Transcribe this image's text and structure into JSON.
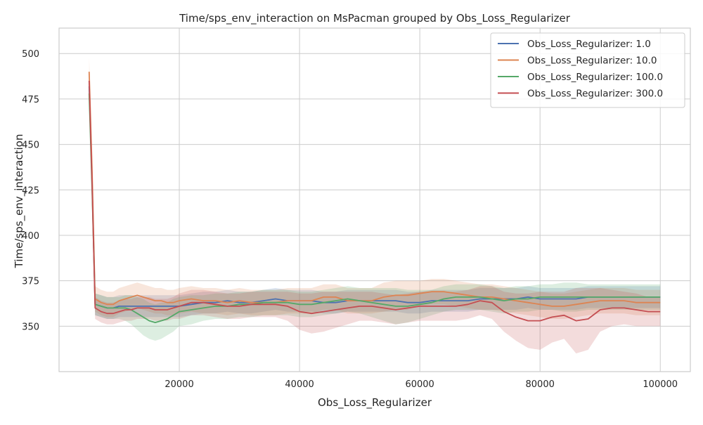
{
  "chart_data": {
    "type": "line",
    "title": "Time/sps_env_interaction on MsPacman grouped by Obs_Loss_Regularizer",
    "xlabel": "Obs_Loss_Regularizer",
    "ylabel": "Time/sps_env_interaction",
    "xlim": [
      0,
      105000
    ],
    "ylim": [
      325,
      514
    ],
    "xticks": [
      20000,
      40000,
      60000,
      80000,
      100000
    ],
    "xtick_labels": [
      "20000",
      "40000",
      "60000",
      "80000",
      "100000"
    ],
    "yticks": [
      350,
      375,
      400,
      425,
      450,
      475,
      500
    ],
    "ytick_labels": [
      "350",
      "375",
      "400",
      "425",
      "450",
      "475",
      "500"
    ],
    "grid": true,
    "legend_position": "top-right",
    "colors": {
      "grid": "#cccccc",
      "axes_edge": "#cccccc"
    },
    "x": [
      5000,
      5500,
      6000,
      7000,
      8000,
      9000,
      10000,
      11000,
      12000,
      13000,
      14000,
      15000,
      16000,
      17000,
      18000,
      19000,
      20000,
      22000,
      24000,
      26000,
      28000,
      30000,
      32000,
      34000,
      36000,
      38000,
      40000,
      42000,
      44000,
      46000,
      48000,
      50000,
      52000,
      54000,
      56000,
      58000,
      60000,
      62000,
      64000,
      66000,
      68000,
      70000,
      72000,
      74000,
      76000,
      78000,
      80000,
      82000,
      84000,
      86000,
      88000,
      90000,
      92000,
      94000,
      96000,
      98000,
      100000
    ],
    "series": [
      {
        "name": "Obs_Loss_Regularizer: 1.0",
        "color": "#4c72b0",
        "values": [
          482,
          430,
          362,
          361,
          360,
          360,
          361,
          361,
          361,
          361,
          361,
          361,
          361,
          361,
          361,
          361,
          361,
          362,
          363,
          363,
          364,
          363,
          363,
          364,
          365,
          364,
          364,
          364,
          363,
          363,
          364,
          364,
          364,
          364,
          364,
          363,
          363,
          364,
          364,
          364,
          364,
          365,
          365,
          365,
          365,
          366,
          365,
          365,
          365,
          365,
          366,
          366,
          366,
          366,
          366,
          366,
          366
        ],
        "band": [
          5,
          10,
          6,
          6,
          6,
          6,
          6,
          6,
          6,
          6,
          6,
          6,
          6,
          6,
          6,
          6,
          6,
          6,
          6,
          6,
          6,
          6,
          6,
          6,
          6,
          6,
          6,
          6,
          6,
          6,
          6,
          6,
          6,
          6,
          6,
          6,
          6,
          6,
          6,
          6,
          6,
          6,
          6,
          6,
          6,
          6,
          6,
          6,
          6,
          6,
          6,
          6,
          6,
          6,
          6,
          6,
          6
        ]
      },
      {
        "name": "Obs_Loss_Regularizer: 10.0",
        "color": "#dd8452",
        "values": [
          490,
          435,
          365,
          363,
          362,
          362,
          364,
          365,
          366,
          367,
          366,
          365,
          364,
          364,
          363,
          363,
          364,
          365,
          364,
          364,
          363,
          364,
          363,
          363,
          363,
          364,
          364,
          364,
          366,
          366,
          364,
          364,
          364,
          366,
          367,
          367,
          368,
          369,
          369,
          368,
          367,
          366,
          366,
          365,
          364,
          363,
          362,
          361,
          361,
          362,
          363,
          364,
          364,
          364,
          363,
          363,
          363
        ],
        "band": [
          8,
          10,
          7,
          7,
          7,
          7,
          7,
          7,
          7,
          7,
          7,
          7,
          7,
          7,
          7,
          7,
          7,
          7,
          7,
          7,
          7,
          7,
          7,
          7,
          7,
          7,
          7,
          7,
          7,
          7,
          7,
          7,
          7,
          8,
          8,
          8,
          7,
          7,
          7,
          7,
          7,
          7,
          7,
          7,
          7,
          7,
          7,
          7,
          7,
          7,
          7,
          7,
          7,
          7,
          7,
          7,
          7
        ]
      },
      {
        "name": "Obs_Loss_Regularizer: 100.0",
        "color": "#55a868",
        "values": [
          478,
          425,
          362,
          361,
          360,
          360,
          360,
          360,
          359,
          357,
          355,
          353,
          352,
          353,
          354,
          356,
          358,
          359,
          360,
          361,
          361,
          362,
          362,
          363,
          363,
          363,
          362,
          362,
          363,
          364,
          365,
          364,
          363,
          362,
          361,
          361,
          362,
          363,
          365,
          366,
          366,
          366,
          365,
          364,
          365,
          365,
          366,
          366,
          366,
          366,
          366,
          366,
          366,
          366,
          366,
          366,
          366
        ],
        "band": [
          6,
          10,
          6,
          6,
          6,
          6,
          6,
          7,
          8,
          9,
          10,
          10,
          10,
          10,
          9,
          9,
          8,
          8,
          7,
          7,
          7,
          7,
          7,
          7,
          7,
          7,
          7,
          7,
          7,
          7,
          7,
          7,
          8,
          9,
          10,
          9,
          8,
          7,
          7,
          7,
          7,
          7,
          7,
          7,
          7,
          7,
          7,
          7,
          8,
          8,
          7,
          7,
          7,
          7,
          7,
          7,
          7
        ]
      },
      {
        "name": "Obs_Loss_Regularizer: 300.0",
        "color": "#c44e52",
        "values": [
          485,
          428,
          360,
          358,
          357,
          357,
          358,
          359,
          359,
          360,
          360,
          360,
          359,
          359,
          359,
          360,
          361,
          363,
          363,
          362,
          361,
          361,
          362,
          362,
          362,
          361,
          358,
          357,
          358,
          359,
          360,
          361,
          361,
          360,
          359,
          360,
          361,
          361,
          361,
          361,
          362,
          364,
          363,
          358,
          355,
          353,
          353,
          355,
          356,
          353,
          354,
          359,
          360,
          360,
          359,
          358,
          358
        ],
        "band": [
          6,
          10,
          6,
          6,
          6,
          6,
          6,
          6,
          6,
          6,
          6,
          6,
          6,
          6,
          6,
          6,
          7,
          7,
          7,
          7,
          7,
          7,
          7,
          7,
          7,
          8,
          10,
          11,
          11,
          10,
          9,
          8,
          8,
          8,
          8,
          8,
          8,
          8,
          8,
          8,
          8,
          8,
          9,
          11,
          13,
          15,
          16,
          14,
          13,
          18,
          17,
          12,
          10,
          9,
          9,
          8,
          8
        ]
      }
    ]
  }
}
